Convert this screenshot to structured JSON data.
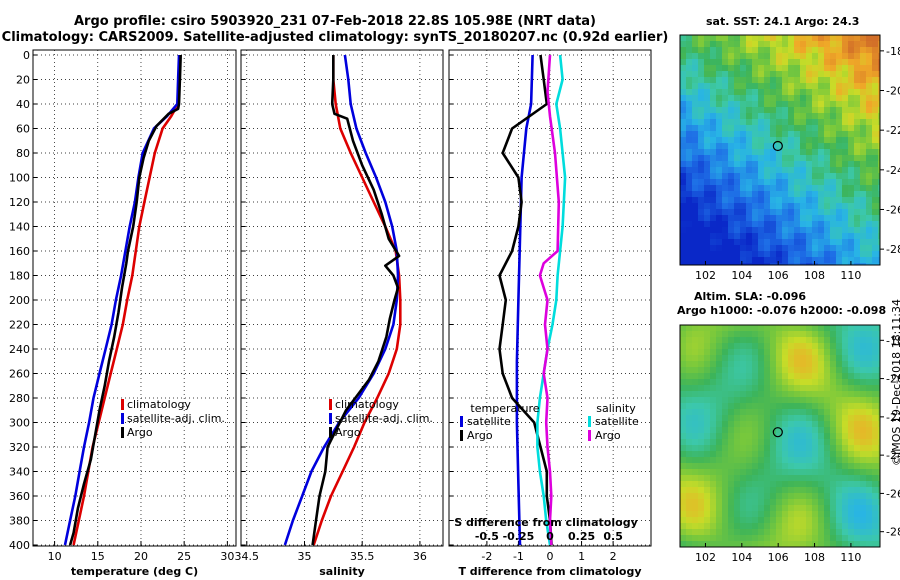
{
  "header": {
    "title_line1": "Argo profile: csiro 5903920_231 07-Feb-2018 22.8S 105.98E (NRT data)",
    "title_line2": "Climatology: CARS2009. Satellite-adjusted climatology: synTS_20180207.nc (0.92d earlier)"
  },
  "maps": {
    "sst_title": "sat. SST: 24.1 Argo: 24.3",
    "sla_title_line1": "Altim. SLA: -0.096",
    "sla_title_line2": "Argo h1000: -0.076 h2000: -0.098",
    "lat_ticks": [
      "-18",
      "-20",
      "-22",
      "-24",
      "-26",
      "-28"
    ],
    "lon_ticks": [
      "102",
      "104",
      "106",
      "108",
      "110"
    ],
    "lat_range": [
      -17.2,
      -28.8
    ],
    "lon_range": [
      100.6,
      111.6
    ],
    "profile_lat": -22.8,
    "profile_lon": 105.98
  },
  "footer": {
    "stamp": "©IMOS 19-Dec-2018 18:11:34"
  },
  "chart_data": [
    {
      "type": "line",
      "name": "temperature",
      "xlabel": "temperature (deg C)",
      "ylabel": "",
      "xlim": [
        7.5,
        31
      ],
      "ylim": [
        0,
        400
      ],
      "x_ticks": [
        10,
        15,
        20,
        25,
        30
      ],
      "y_ticks": [
        0,
        20,
        40,
        60,
        80,
        100,
        120,
        140,
        160,
        180,
        200,
        220,
        240,
        260,
        280,
        300,
        320,
        340,
        360,
        380,
        400
      ],
      "grid": true,
      "legend_position": "lower-right",
      "series": [
        {
          "name": "climatology",
          "color": "#dd0000",
          "points": [
            [
              24.5,
              0
            ],
            [
              24.4,
              20
            ],
            [
              24.3,
              40
            ],
            [
              23.5,
              50
            ],
            [
              22.5,
              60
            ],
            [
              21.6,
              80
            ],
            [
              21.0,
              100
            ],
            [
              20.4,
              120
            ],
            [
              19.8,
              140
            ],
            [
              19.4,
              160
            ],
            [
              19.0,
              180
            ],
            [
              18.4,
              200
            ],
            [
              17.9,
              220
            ],
            [
              17.2,
              240
            ],
            [
              16.5,
              260
            ],
            [
              15.8,
              280
            ],
            [
              15.1,
              300
            ],
            [
              14.4,
              320
            ],
            [
              13.9,
              340
            ],
            [
              13.4,
              360
            ],
            [
              12.8,
              380
            ],
            [
              12.2,
              400
            ]
          ]
        },
        {
          "name": "satellite-adj. clim.",
          "color": "#0000dd",
          "points": [
            [
              24.4,
              0
            ],
            [
              24.3,
              20
            ],
            [
              24.2,
              40
            ],
            [
              23.0,
              50
            ],
            [
              21.5,
              60
            ],
            [
              20.2,
              80
            ],
            [
              19.7,
              100
            ],
            [
              19.3,
              120
            ],
            [
              18.7,
              140
            ],
            [
              18.2,
              160
            ],
            [
              17.7,
              180
            ],
            [
              17.1,
              200
            ],
            [
              16.6,
              220
            ],
            [
              15.9,
              240
            ],
            [
              15.2,
              260
            ],
            [
              14.5,
              280
            ],
            [
              14.0,
              300
            ],
            [
              13.4,
              320
            ],
            [
              12.9,
              340
            ],
            [
              12.4,
              360
            ],
            [
              11.8,
              380
            ],
            [
              11.2,
              400
            ]
          ]
        },
        {
          "name": "Argo",
          "color": "#000000",
          "points": [
            [
              24.6,
              0
            ],
            [
              24.5,
              20
            ],
            [
              24.4,
              40
            ],
            [
              24.3,
              44
            ],
            [
              23.2,
              48
            ],
            [
              21.8,
              58
            ],
            [
              20.9,
              70
            ],
            [
              20.3,
              84
            ],
            [
              19.8,
              100
            ],
            [
              19.5,
              120
            ],
            [
              19.1,
              140
            ],
            [
              18.5,
              160
            ],
            [
              18.3,
              170
            ],
            [
              17.8,
              190
            ],
            [
              17.4,
              210
            ],
            [
              16.9,
              230
            ],
            [
              16.3,
              250
            ],
            [
              15.8,
              270
            ],
            [
              15.2,
              290
            ],
            [
              14.7,
              310
            ],
            [
              14.2,
              330
            ],
            [
              13.4,
              350
            ],
            [
              12.7,
              370
            ],
            [
              12.2,
              390
            ],
            [
              11.8,
              400
            ]
          ]
        }
      ]
    },
    {
      "type": "line",
      "name": "salinity",
      "xlabel": "salinity",
      "ylabel": "",
      "xlim": [
        34.45,
        36.2
      ],
      "ylim": [
        0,
        400
      ],
      "x_ticks": [
        34.5,
        35,
        35.5,
        36
      ],
      "x_tick_labels": [
        "34.5",
        "35",
        "35.5",
        "36"
      ],
      "y_ticks": [
        0,
        20,
        40,
        60,
        80,
        100,
        120,
        140,
        160,
        180,
        200,
        220,
        240,
        260,
        280,
        300,
        320,
        340,
        360,
        380,
        400
      ],
      "grid": true,
      "legend_position": "lower-right",
      "series": [
        {
          "name": "climatology",
          "color": "#dd0000",
          "points": [
            [
              35.25,
              0
            ],
            [
              35.25,
              20
            ],
            [
              35.27,
              40
            ],
            [
              35.31,
              60
            ],
            [
              35.4,
              80
            ],
            [
              35.5,
              100
            ],
            [
              35.6,
              120
            ],
            [
              35.7,
              140
            ],
            [
              35.79,
              160
            ],
            [
              35.82,
              180
            ],
            [
              35.83,
              200
            ],
            [
              35.83,
              220
            ],
            [
              35.8,
              240
            ],
            [
              35.73,
              260
            ],
            [
              35.63,
              280
            ],
            [
              35.52,
              300
            ],
            [
              35.43,
              320
            ],
            [
              35.33,
              340
            ],
            [
              35.23,
              360
            ],
            [
              35.15,
              380
            ],
            [
              35.08,
              400
            ]
          ]
        },
        {
          "name": "satellite-adj. clim.",
          "color": "#0000dd",
          "points": [
            [
              35.35,
              0
            ],
            [
              35.38,
              20
            ],
            [
              35.4,
              40
            ],
            [
              35.45,
              60
            ],
            [
              35.53,
              80
            ],
            [
              35.62,
              100
            ],
            [
              35.7,
              120
            ],
            [
              35.76,
              140
            ],
            [
              35.8,
              160
            ],
            [
              35.81,
              180
            ],
            [
              35.8,
              200
            ],
            [
              35.77,
              220
            ],
            [
              35.7,
              240
            ],
            [
              35.6,
              260
            ],
            [
              35.47,
              280
            ],
            [
              35.3,
              300
            ],
            [
              35.17,
              320
            ],
            [
              35.06,
              340
            ],
            [
              34.98,
              360
            ],
            [
              34.9,
              380
            ],
            [
              34.83,
              400
            ]
          ]
        },
        {
          "name": "Argo",
          "color": "#000000",
          "points": [
            [
              35.25,
              0
            ],
            [
              35.25,
              20
            ],
            [
              35.24,
              40
            ],
            [
              35.26,
              48
            ],
            [
              35.37,
              52
            ],
            [
              35.42,
              70
            ],
            [
              35.5,
              90
            ],
            [
              35.6,
              110
            ],
            [
              35.67,
              130
            ],
            [
              35.73,
              150
            ],
            [
              35.82,
              164
            ],
            [
              35.7,
              172
            ],
            [
              35.77,
              180
            ],
            [
              35.81,
              190
            ],
            [
              35.78,
              200
            ],
            [
              35.74,
              215
            ],
            [
              35.71,
              230
            ],
            [
              35.64,
              250
            ],
            [
              35.56,
              265
            ],
            [
              35.44,
              280
            ],
            [
              35.36,
              290
            ],
            [
              35.28,
              305
            ],
            [
              35.2,
              320
            ],
            [
              35.18,
              340
            ],
            [
              35.13,
              360
            ],
            [
              35.1,
              380
            ],
            [
              35.07,
              400
            ]
          ]
        }
      ]
    },
    {
      "type": "line",
      "name": "difference from climatology",
      "xlabel": "T difference from climatology",
      "secondary_xlabel": "S difference from climatology",
      "ylabel": "",
      "xlim": [
        -3.2,
        3.2
      ],
      "ylim": [
        0,
        400
      ],
      "x_ticks": [
        -2,
        -1,
        0,
        1,
        2
      ],
      "x_tick_labels": [
        "-2",
        "-1",
        "0",
        "1",
        "2"
      ],
      "secondary_x_ticks": [
        -0.5,
        -0.25,
        0,
        0.25,
        0.5
      ],
      "secondary_x_tick_labels": [
        "-0.5",
        "-0.25",
        "0",
        "0.25",
        "0.5"
      ],
      "secondary_xlim": [
        -0.8,
        0.8
      ],
      "y_ticks": [
        0,
        20,
        40,
        60,
        80,
        100,
        120,
        140,
        160,
        180,
        200,
        220,
        240,
        260,
        280,
        300,
        320,
        340,
        360,
        380,
        400
      ],
      "grid": true,
      "legend_temperature_title": "temperature",
      "legend_salinity_title": "salinity",
      "series": [
        {
          "name": "satellite",
          "group": "temperature",
          "color": "#0000dd",
          "points": [
            [
              -0.55,
              0
            ],
            [
              -0.6,
              40
            ],
            [
              -0.75,
              60
            ],
            [
              -0.9,
              100
            ],
            [
              -0.95,
              150
            ],
            [
              -1.0,
              200
            ],
            [
              -1.05,
              250
            ],
            [
              -1.05,
              300
            ],
            [
              -1.0,
              350
            ],
            [
              -0.95,
              400
            ]
          ]
        },
        {
          "name": "Argo",
          "group": "temperature",
          "color": "#000000",
          "points": [
            [
              -0.3,
              0
            ],
            [
              -0.2,
              20
            ],
            [
              -0.1,
              40
            ],
            [
              -1.2,
              60
            ],
            [
              -1.5,
              80
            ],
            [
              -1.0,
              100
            ],
            [
              -0.9,
              120
            ],
            [
              -1.0,
              140
            ],
            [
              -1.2,
              160
            ],
            [
              -1.6,
              180
            ],
            [
              -1.4,
              200
            ],
            [
              -1.5,
              220
            ],
            [
              -1.6,
              240
            ],
            [
              -1.5,
              260
            ],
            [
              -1.2,
              280
            ],
            [
              -0.5,
              300
            ],
            [
              -0.3,
              320
            ],
            [
              -0.1,
              340
            ],
            [
              -0.1,
              360
            ],
            [
              0.0,
              380
            ],
            [
              0.05,
              400
            ]
          ]
        },
        {
          "name": "satellite",
          "group": "salinity",
          "color": "#00dddd",
          "points": [
            [
              0.08,
              0
            ],
            [
              0.1,
              20
            ],
            [
              0.05,
              40
            ],
            [
              0.08,
              60
            ],
            [
              0.12,
              100
            ],
            [
              0.1,
              140
            ],
            [
              0.06,
              180
            ],
            [
              0.05,
              200
            ],
            [
              0.02,
              220
            ],
            [
              -0.02,
              240
            ],
            [
              -0.05,
              260
            ],
            [
              -0.08,
              280
            ],
            [
              -0.1,
              300
            ],
            [
              -0.1,
              320
            ],
            [
              -0.08,
              340
            ],
            [
              -0.05,
              360
            ],
            [
              -0.03,
              380
            ],
            [
              0.0,
              400
            ]
          ]
        },
        {
          "name": "Argo",
          "group": "salinity",
          "color": "#dd00dd",
          "points": [
            [
              0.0,
              0
            ],
            [
              -0.02,
              30
            ],
            [
              0.0,
              50
            ],
            [
              0.04,
              80
            ],
            [
              0.07,
              120
            ],
            [
              0.06,
              160
            ],
            [
              -0.05,
              170
            ],
            [
              -0.08,
              180
            ],
            [
              -0.02,
              200
            ],
            [
              -0.04,
              220
            ],
            [
              -0.02,
              240
            ],
            [
              -0.05,
              260
            ],
            [
              -0.02,
              280
            ],
            [
              -0.03,
              300
            ],
            [
              -0.02,
              320
            ],
            [
              0.0,
              340
            ],
            [
              0.01,
              360
            ],
            [
              0.0,
              380
            ],
            [
              0.01,
              400
            ]
          ]
        }
      ]
    }
  ]
}
